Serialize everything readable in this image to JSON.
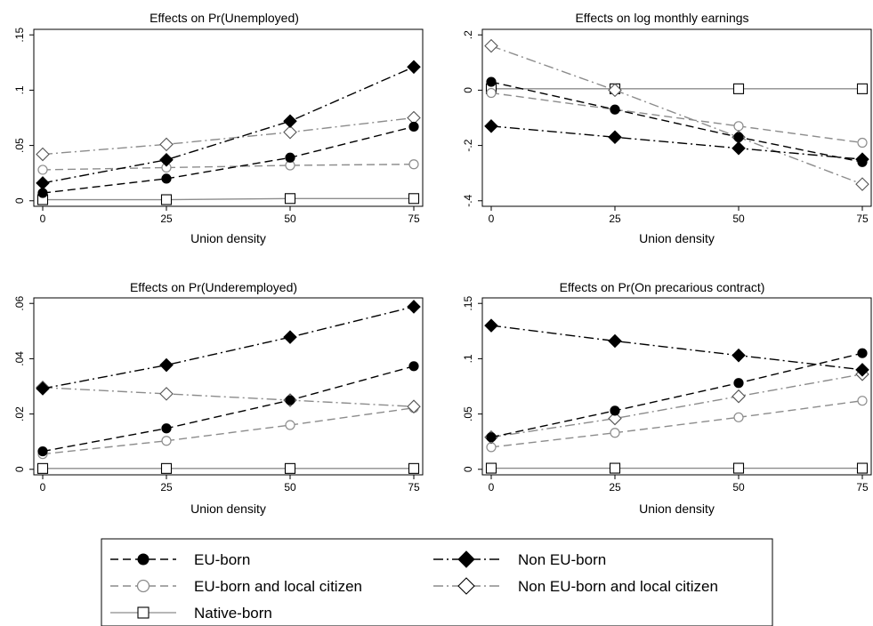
{
  "series_styles": [
    {
      "key": "eu",
      "name": "EU-born",
      "color": "#000000",
      "dash": "9,5",
      "marker": "circle",
      "fill": "#000000"
    },
    {
      "key": "noneu",
      "name": "Non EU-born",
      "color": "#000000",
      "dash": "11,4,2,4",
      "marker": "diamond",
      "fill": "#000000"
    },
    {
      "key": "euloc",
      "name": "EU-born and local citizen",
      "color": "#8c8c8c",
      "dash": "9,5",
      "marker": "circle",
      "fill": "#ffffff"
    },
    {
      "key": "noneuloc",
      "name": "Non EU-born and local citizen",
      "color": "#8c8c8c",
      "dash": "11,4,2,4",
      "marker": "diamond",
      "fill": "#ffffff"
    },
    {
      "key": "native",
      "name": "Native-born",
      "color": "#8c8c8c",
      "dash": "",
      "marker": "square",
      "fill": "#ffffff"
    }
  ],
  "chart_data": [
    {
      "type": "line",
      "title": "Effects on Pr(Unemployed)",
      "xlabel": "Union density",
      "ylabel": "",
      "x": [
        0,
        25,
        50,
        75
      ],
      "xticks": [
        "0",
        "25",
        "50",
        "75"
      ],
      "yticks": [
        0,
        0.05,
        0.1,
        0.15
      ],
      "ytick_labels": [
        "0",
        ".05",
        ".1",
        ".15"
      ],
      "ylim": [
        -0.005,
        0.155
      ],
      "series": [
        {
          "name": "EU-born",
          "values": [
            0.007,
            0.02,
            0.039,
            0.067
          ]
        },
        {
          "name": "Non EU-born",
          "values": [
            0.016,
            0.037,
            0.072,
            0.121
          ]
        },
        {
          "name": "EU-born and local citizen",
          "values": [
            0.028,
            0.03,
            0.032,
            0.033
          ]
        },
        {
          "name": "Non EU-born and local citizen",
          "values": [
            0.042,
            0.051,
            0.062,
            0.075
          ]
        },
        {
          "name": "Native-born",
          "values": [
            0.001,
            0.001,
            0.002,
            0.002
          ]
        }
      ]
    },
    {
      "type": "line",
      "title": "Effects on log monthly earnings",
      "xlabel": "Union density",
      "ylabel": "",
      "x": [
        0,
        25,
        50,
        75
      ],
      "xticks": [
        "0",
        "25",
        "50",
        "75"
      ],
      "yticks": [
        -0.4,
        -0.2,
        0,
        0.2
      ],
      "ytick_labels": [
        "-.4",
        "-.2",
        "0",
        ".2"
      ],
      "ylim": [
        -0.42,
        0.22
      ],
      "series": [
        {
          "name": "EU-born",
          "values": [
            0.03,
            -0.07,
            -0.17,
            -0.26
          ]
        },
        {
          "name": "Non EU-born",
          "values": [
            -0.13,
            -0.17,
            -0.21,
            -0.25
          ]
        },
        {
          "name": "EU-born and local citizen",
          "values": [
            -0.01,
            -0.07,
            -0.13,
            -0.19
          ]
        },
        {
          "name": "Non EU-born and local citizen",
          "values": [
            0.16,
            0.0,
            -0.17,
            -0.34
          ]
        },
        {
          "name": "Native-born",
          "values": [
            0.005,
            0.005,
            0.005,
            0.005
          ]
        }
      ]
    },
    {
      "type": "line",
      "title": "Effects on Pr(Underemployed)",
      "xlabel": "Union density",
      "ylabel": "",
      "x": [
        0,
        25,
        50,
        75
      ],
      "xticks": [
        "0",
        "25",
        "50",
        "75"
      ],
      "yticks": [
        0,
        0.02,
        0.04,
        0.06
      ],
      "ytick_labels": [
        "0",
        ".02",
        ".04",
        ".06"
      ],
      "ylim": [
        -0.002,
        0.062
      ],
      "series": [
        {
          "name": "EU-born",
          "values": [
            0.0065,
            0.0148,
            0.025,
            0.0373
          ]
        },
        {
          "name": "Non EU-born",
          "values": [
            0.0292,
            0.0377,
            0.0478,
            0.0588
          ]
        },
        {
          "name": "EU-born and local citizen",
          "values": [
            0.0055,
            0.0103,
            0.016,
            0.0222
          ]
        },
        {
          "name": "Non EU-born and local citizen",
          "values": [
            0.0296,
            0.0273,
            0.025,
            0.0227
          ]
        },
        {
          "name": "Native-born",
          "values": [
            0.0003,
            0.0003,
            0.0003,
            0.0003
          ]
        }
      ]
    },
    {
      "type": "line",
      "title": "Effects on Pr(On precarious contract)",
      "xlabel": "Union density",
      "ylabel": "",
      "x": [
        0,
        25,
        50,
        75
      ],
      "xticks": [
        "0",
        "25",
        "50",
        "75"
      ],
      "yticks": [
        0,
        0.05,
        0.1,
        0.15
      ],
      "ytick_labels": [
        "0",
        ".05",
        ".1",
        ".15"
      ],
      "ylim": [
        -0.005,
        0.155
      ],
      "series": [
        {
          "name": "EU-born",
          "values": [
            0.029,
            0.053,
            0.078,
            0.105
          ]
        },
        {
          "name": "Non EU-born",
          "values": [
            0.13,
            0.116,
            0.103,
            0.09
          ]
        },
        {
          "name": "EU-born and local citizen",
          "values": [
            0.02,
            0.033,
            0.047,
            0.062
          ]
        },
        {
          "name": "Non EU-born and local citizen",
          "values": [
            0.029,
            0.046,
            0.066,
            0.086
          ]
        },
        {
          "name": "Native-born",
          "values": [
            0.001,
            0.001,
            0.001,
            0.001
          ]
        }
      ]
    }
  ],
  "legend": {
    "items": [
      "EU-born",
      "Non EU-born",
      "EU-born and local citizen",
      "Non EU-born and local citizen",
      "Native-born"
    ]
  }
}
